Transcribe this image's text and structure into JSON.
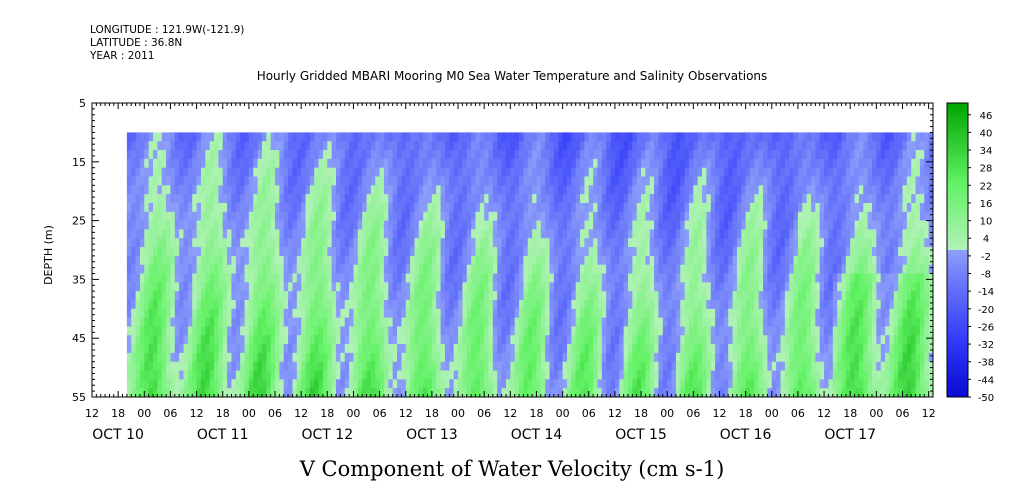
{
  "meta": {
    "longitude": "LONGITUDE : 121.9W(-121.9)",
    "latitude": "LATITUDE : 36.8N",
    "year": "YEAR : 2011"
  },
  "chart_data": {
    "type": "heatmap",
    "title": "Hourly Gridded MBARI Mooring M0 Sea Water Temperature and Salinity Observations",
    "subtitle": "V Component of Water Velocity (cm s-1)",
    "ylabel": "DEPTH (m)",
    "y_axis": {
      "inverted": true,
      "range": [
        5,
        55
      ],
      "ticks": [
        5,
        15,
        25,
        35,
        45,
        55
      ],
      "data_depth_range": [
        10,
        55
      ]
    },
    "x_axis": {
      "unit": "hours",
      "hour_ticks": [
        "12",
        "18",
        "00",
        "06",
        "12",
        "18",
        "00",
        "06",
        "12",
        "18",
        "00",
        "06",
        "12",
        "18",
        "00",
        "06",
        "12",
        "18",
        "00",
        "06",
        "12",
        "18",
        "00",
        "06",
        "12",
        "18",
        "00",
        "06",
        "12",
        "18",
        "00",
        "06",
        "12"
      ],
      "day_labels": [
        "OCT 10",
        "OCT 11",
        "OCT 12",
        "OCT 13",
        "OCT 14",
        "OCT 15",
        "OCT 16",
        "OCT 17"
      ],
      "range": [
        "2011-10-10 12:00",
        "2011-10-17 13:00"
      ],
      "data_start": "2011-10-10 20:00",
      "data_end": "2011-10-17 13:00"
    },
    "colorbar": {
      "range": [
        -50,
        50
      ],
      "tick_labels": [
        "46",
        "40",
        "34",
        "28",
        "22",
        "16",
        "10",
        "4",
        "-2",
        "-8",
        "-14",
        "-20",
        "-26",
        "-32",
        "-38",
        "-44",
        "-50"
      ],
      "negative_color": "#3050e0",
      "positive_color": "#10d040"
    },
    "pattern": {
      "description_values": "surface mostly negative (blue, about -8 to -25), deeper layers positive (green, about +4 to +25), alternating roughly twice per day",
      "surface_mean": -12,
      "bottom_mean": 14
    }
  }
}
